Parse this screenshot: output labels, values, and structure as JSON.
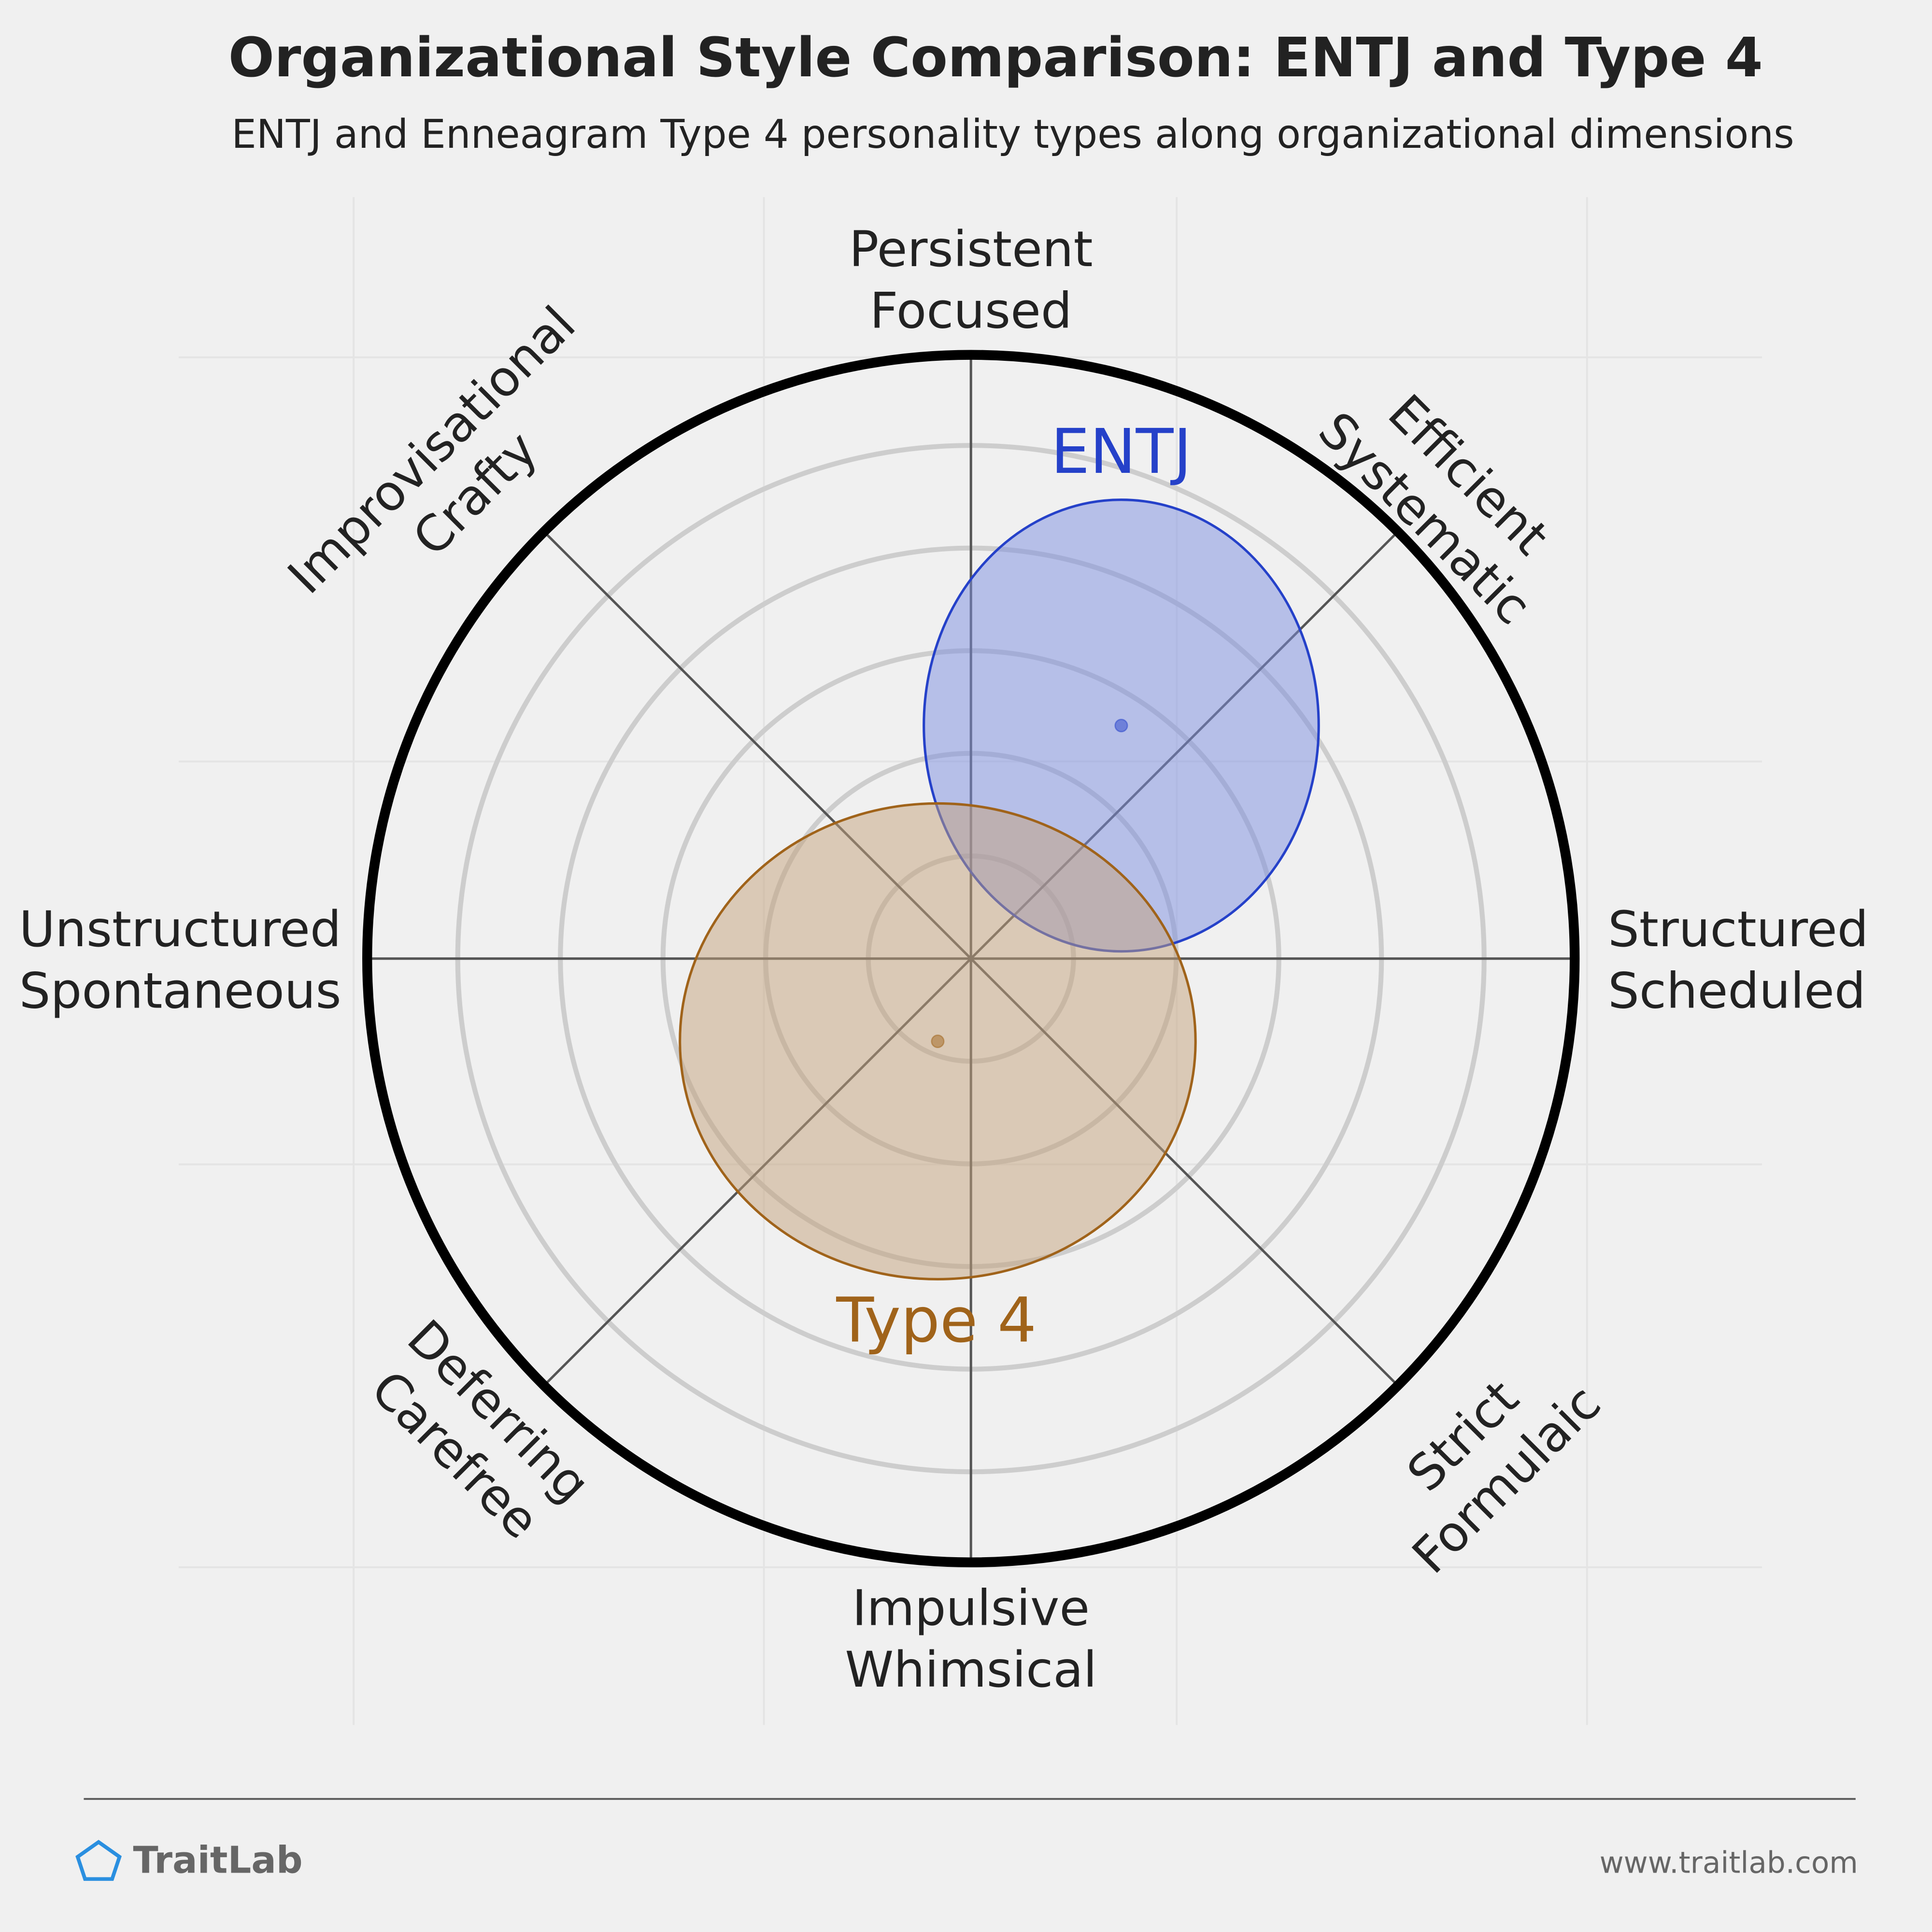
{
  "chart_data": {
    "type": "personality-map",
    "title": "Organizational Style Comparison: ENTJ and Type 4",
    "subtitle": "ENTJ and Enneagram Type 4 personality types along organizational dimensions",
    "axes": [
      [
        "Persistent",
        "Focused"
      ],
      [
        "Efficient",
        "Systematic"
      ],
      [
        "Structured",
        "Scheduled"
      ],
      [
        "Strict",
        "Formulaic"
      ],
      [
        "Impulsive",
        "Whimsical"
      ],
      [
        "Deferring",
        "Carefree"
      ],
      [
        "Unstructured",
        "Spontaneous"
      ],
      [
        "Improvisational",
        "Crafty"
      ]
    ],
    "xlim": [
      -1,
      1
    ],
    "ylim": [
      -1,
      1
    ],
    "rings": [
      0.17,
      0.34,
      0.51,
      0.68,
      0.85
    ],
    "series": [
      {
        "name": "ENTJ",
        "color": "#2541c9",
        "fill": "#7b8de0",
        "x": 0.249,
        "y": 0.386,
        "rx": 0.327,
        "ry": 0.374
      },
      {
        "name": "Type 4",
        "color": "#a0631a",
        "fill": "#c4a27c",
        "x": -0.055,
        "y": -0.137,
        "rx": 0.427,
        "ry": 0.394
      }
    ],
    "brand": "TraitLab",
    "url": "www.traitlab.com"
  }
}
